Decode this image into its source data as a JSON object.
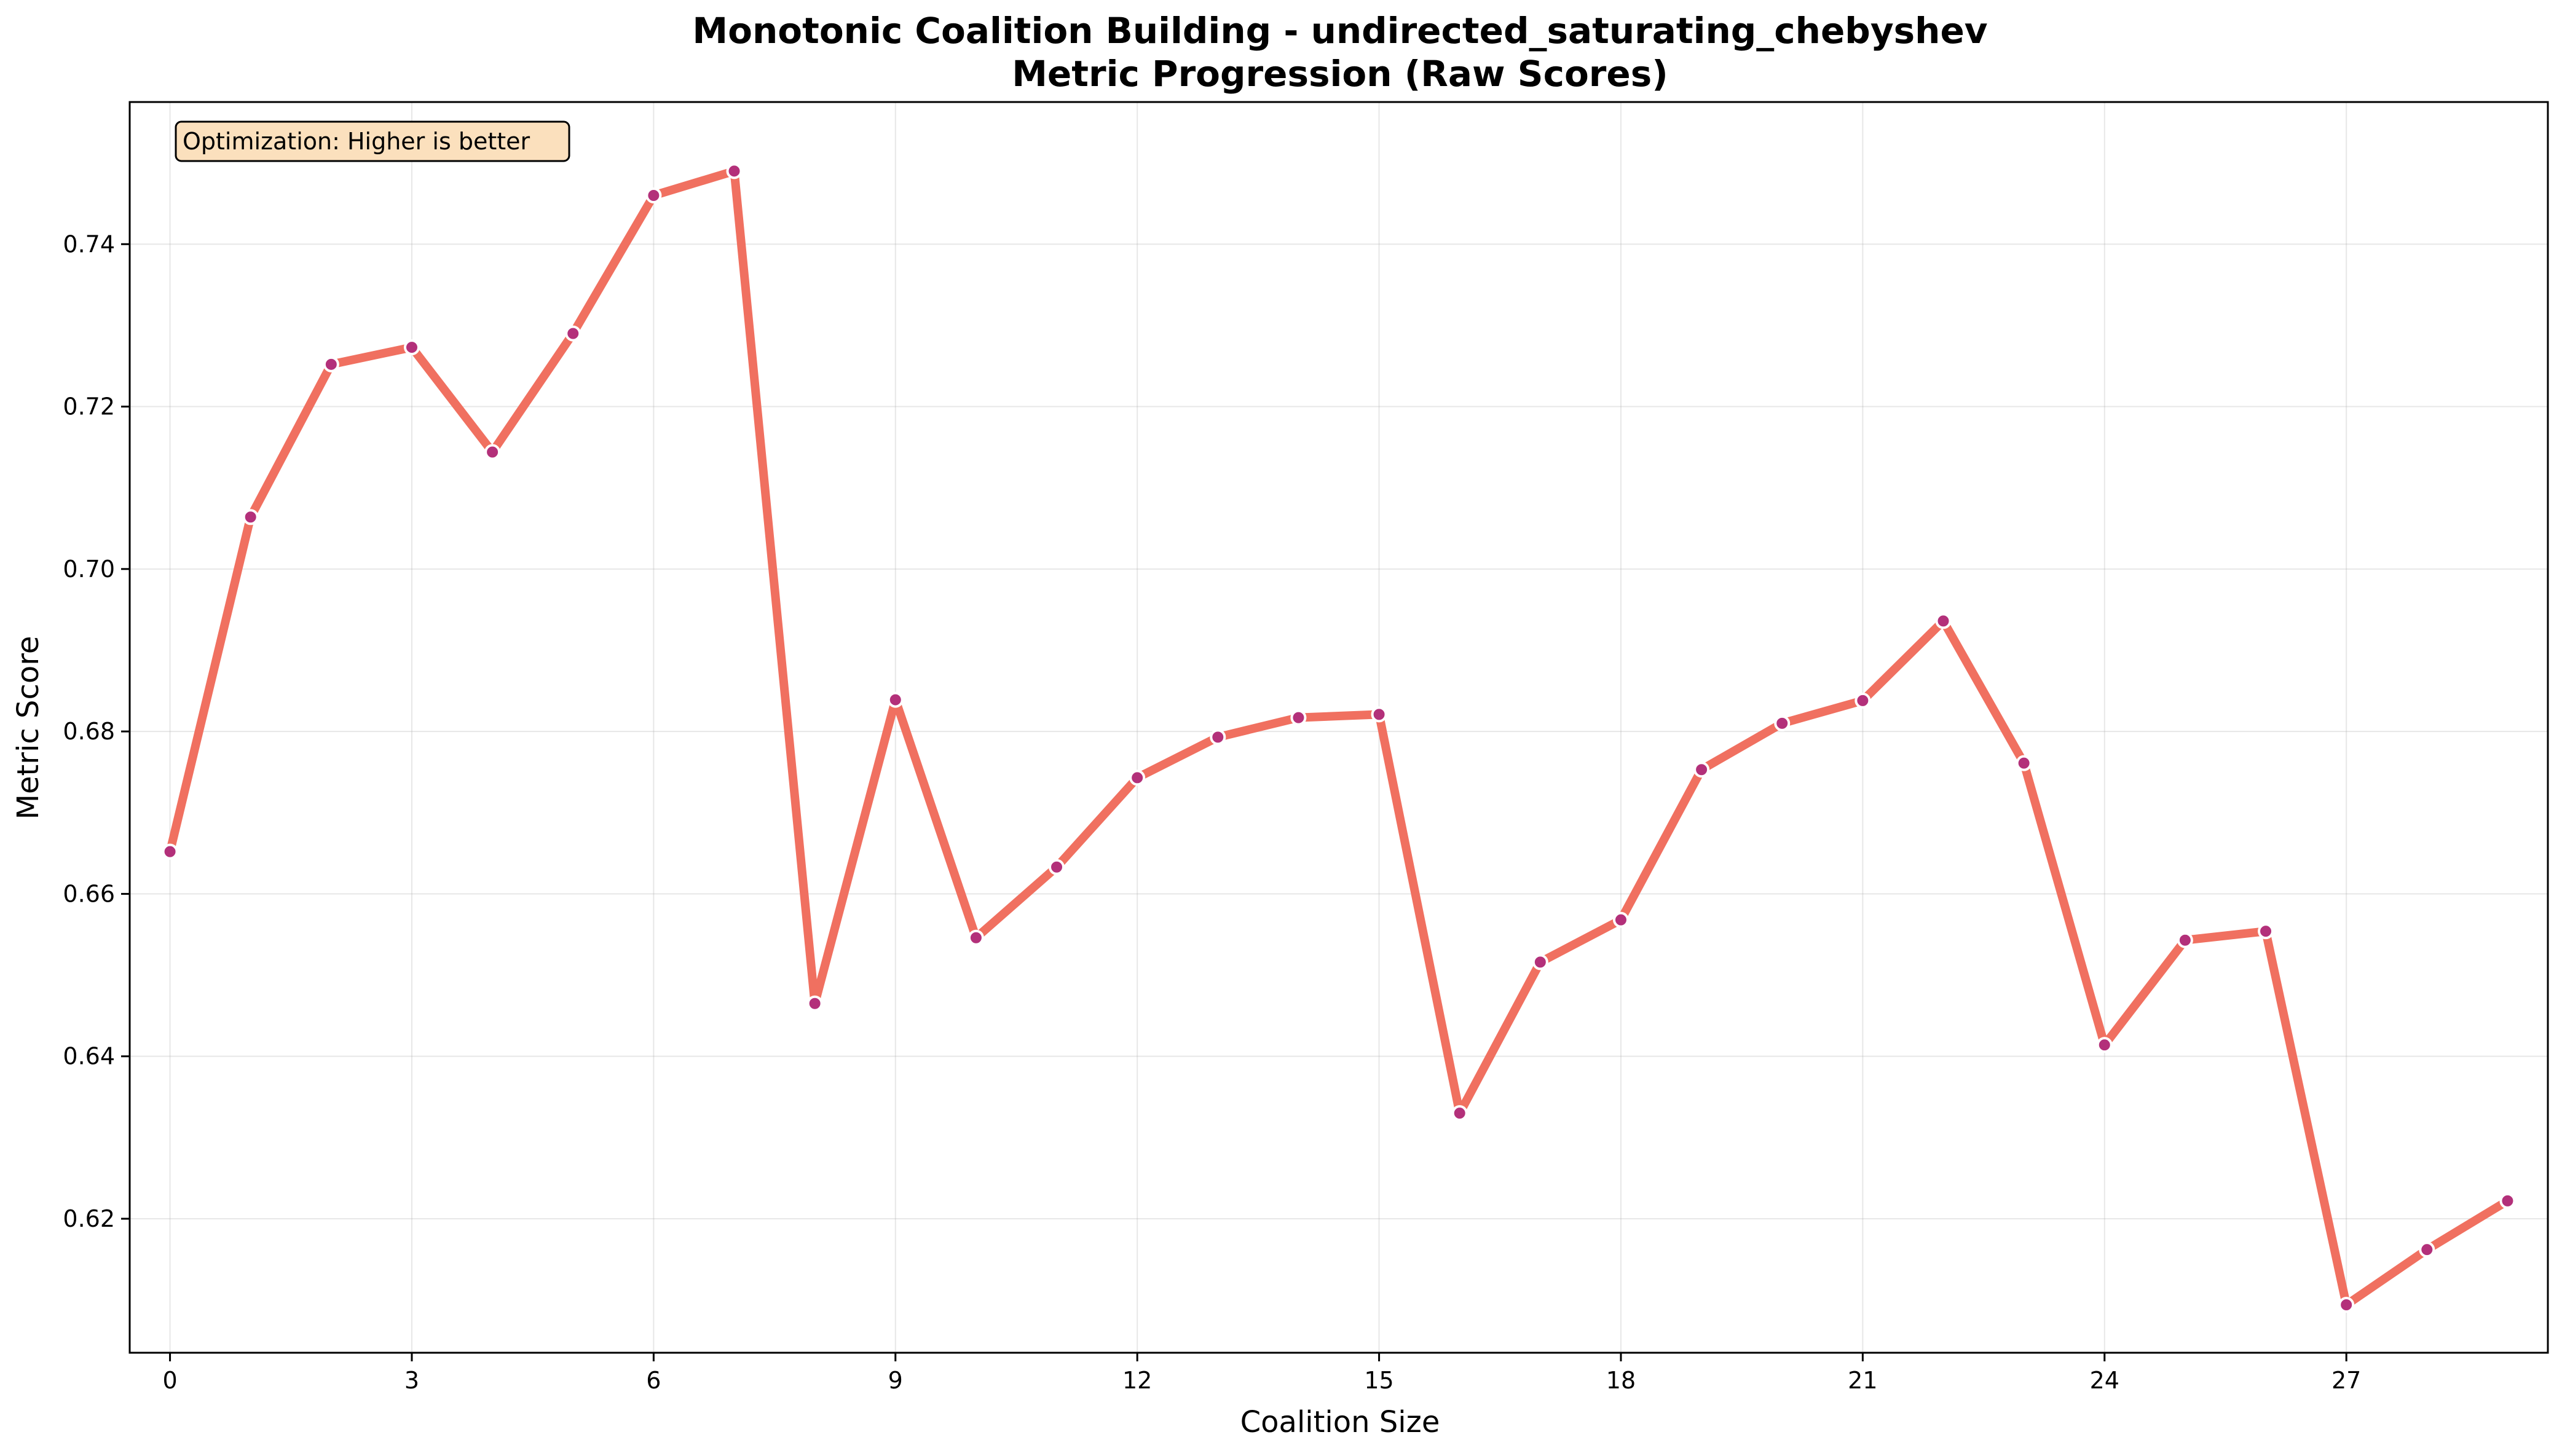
{
  "chart_data": {
    "type": "line",
    "title": "Monotonic Coalition Building - undirected_saturating_chebyshev",
    "subtitle": "Metric Progression (Raw Scores)",
    "xlabel": "Coalition Size",
    "ylabel": "Metric Score",
    "xlim": [
      -0.5,
      29.5
    ],
    "ylim": [
      0.6035,
      0.7575
    ],
    "xticks": [
      0,
      3,
      6,
      9,
      12,
      15,
      18,
      21,
      24,
      27
    ],
    "yticks": [
      0.62,
      0.64,
      0.66,
      0.68,
      0.7,
      0.72,
      0.74
    ],
    "ytick_labels": [
      "0.62",
      "0.64",
      "0.66",
      "0.68",
      "0.70",
      "0.72",
      "0.74"
    ],
    "grid": true,
    "x": [
      0,
      1,
      2,
      3,
      4,
      5,
      6,
      7,
      8,
      9,
      10,
      11,
      12,
      13,
      14,
      15,
      16,
      17,
      18,
      19,
      20,
      21,
      22,
      23,
      24,
      25,
      26,
      27,
      28,
      29
    ],
    "values": [
      0.6652,
      0.7064,
      0.7252,
      0.7273,
      0.7144,
      0.729,
      0.746,
      0.749,
      0.6465,
      0.6839,
      0.6546,
      0.6633,
      0.6743,
      0.6793,
      0.6817,
      0.6821,
      0.633,
      0.6516,
      0.6568,
      0.6753,
      0.681,
      0.6838,
      0.6936,
      0.6761,
      0.6414,
      0.6543,
      0.6554,
      0.6094,
      0.6162,
      0.6222
    ],
    "line_color": "#f07060",
    "marker_color": "#b3307a",
    "annotation": {
      "text": "Optimization: Higher is better",
      "background": "#fbe0bd"
    }
  }
}
